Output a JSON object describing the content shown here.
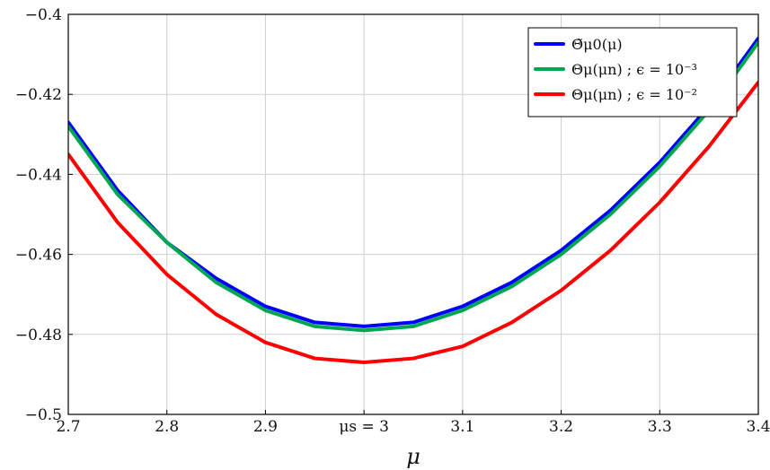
{
  "chart_data": {
    "type": "line",
    "title": "",
    "xlabel": "μ",
    "ylabel": "",
    "xlim": [
      2.7,
      3.4
    ],
    "ylim": [
      -0.5,
      -0.4
    ],
    "grid": true,
    "legend_position": "top-right",
    "x_ticks": [
      2.7,
      2.8,
      2.9,
      3.0,
      3.1,
      3.2,
      3.3,
      3.4
    ],
    "x_tick_labels": [
      "2.7",
      "2.8",
      "2.9",
      "μs = 3",
      "3.1",
      "3.2",
      "3.3",
      "3.4"
    ],
    "y_ticks": [
      -0.5,
      -0.48,
      -0.46,
      -0.44,
      -0.42,
      -0.4
    ],
    "y_tick_labels": [
      "−0.5",
      "−0.48",
      "−0.46",
      "−0.44",
      "−0.42",
      "−0.4"
    ],
    "series": [
      {
        "name": "Θ̃μ0(μ)",
        "color": "#0000ff",
        "x": [
          2.7,
          2.75,
          2.8,
          2.85,
          2.9,
          2.95,
          3.0,
          3.05,
          3.1,
          3.15,
          3.2,
          3.25,
          3.3,
          3.35,
          3.4
        ],
        "y": [
          -0.427,
          -0.444,
          -0.457,
          -0.466,
          -0.473,
          -0.477,
          -0.478,
          -0.477,
          -0.473,
          -0.467,
          -0.459,
          -0.449,
          -0.437,
          -0.423,
          -0.406
        ]
      },
      {
        "name": "Θμ(μn) ; ϵ = 10⁻³",
        "color": "#00a651",
        "x": [
          2.7,
          2.75,
          2.8,
          2.85,
          2.9,
          2.95,
          3.0,
          3.05,
          3.1,
          3.15,
          3.2,
          3.25,
          3.3,
          3.35,
          3.4
        ],
        "y": [
          -0.428,
          -0.445,
          -0.457,
          -0.467,
          -0.474,
          -0.478,
          -0.479,
          -0.478,
          -0.474,
          -0.468,
          -0.46,
          -0.45,
          -0.438,
          -0.424,
          -0.407
        ]
      },
      {
        "name": "Θμ(μn) ; ϵ = 10⁻²",
        "color": "#ff0000",
        "x": [
          2.7,
          2.75,
          2.8,
          2.85,
          2.9,
          2.95,
          3.0,
          3.05,
          3.1,
          3.15,
          3.2,
          3.25,
          3.3,
          3.35,
          3.4
        ],
        "y": [
          -0.435,
          -0.452,
          -0.465,
          -0.475,
          -0.482,
          -0.486,
          -0.487,
          -0.486,
          -0.483,
          -0.477,
          -0.469,
          -0.459,
          -0.447,
          -0.433,
          -0.417
        ]
      }
    ]
  }
}
